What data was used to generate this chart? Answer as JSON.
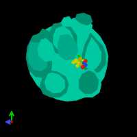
{
  "background_color": "#000000",
  "protein_color": "#00c8a0",
  "protein_color_dark": "#009070",
  "protein_color_mid": "#00aa88",
  "ligand_yellow": "#cccc00",
  "ligand_yellow_dark": "#aaaa00",
  "ligand_blue": "#2244dd",
  "ligand_red": "#cc2200",
  "ligand_green": "#00bb00",
  "axis_x_color": "#3355ff",
  "axis_y_color": "#00cc00",
  "axis_origin_color": "#cc0000",
  "figsize": [
    2.0,
    2.0
  ],
  "dpi": 100
}
